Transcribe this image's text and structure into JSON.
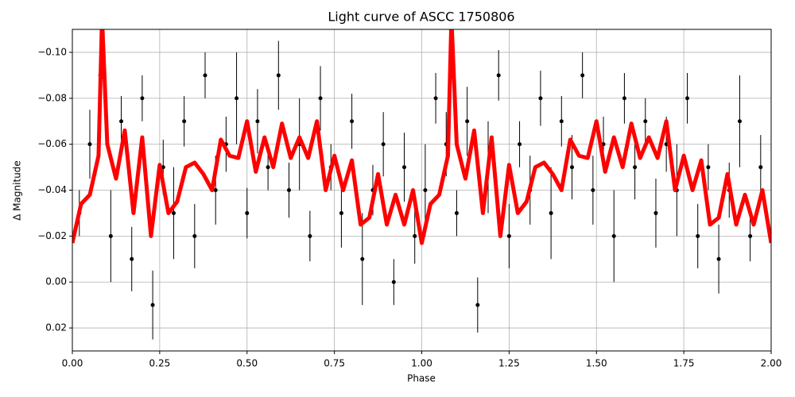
{
  "chart_data": {
    "type": "errorbar",
    "title": "Light curve of ASCC 1750806",
    "x_label": "Phase",
    "y_label": "Δ Magnitude",
    "xlim": [
      0,
      2
    ],
    "ylim": [
      0.03,
      -0.11
    ],
    "grid": true,
    "xticks": [
      {
        "value": 0,
        "label": "0.00"
      },
      {
        "value": 0.25,
        "label": "0.25"
      },
      {
        "value": 0.5,
        "label": "0.50"
      },
      {
        "value": 0.75,
        "label": "0.75"
      },
      {
        "value": 1,
        "label": "1.00"
      },
      {
        "value": 1.25,
        "label": "1.25"
      },
      {
        "value": 1.5,
        "label": "1.50"
      },
      {
        "value": 1.75,
        "label": "1.75"
      },
      {
        "value": 2,
        "label": "2.00"
      }
    ],
    "yticks": [
      {
        "value": -0.1,
        "label": "−0.10"
      },
      {
        "value": -0.08,
        "label": "−0.08"
      },
      {
        "value": -0.06,
        "label": "−0.06"
      },
      {
        "value": -0.04,
        "label": "−0.04"
      },
      {
        "value": -0.02,
        "label": "−0.02"
      },
      {
        "value": 0,
        "label": "0.00"
      },
      {
        "value": 0.02,
        "label": "0.02"
      }
    ],
    "series": [
      {
        "type": "errorbar",
        "color": "#000000",
        "x": [
          0.02,
          0.05,
          0.08,
          0.11,
          0.14,
          0.17,
          0.2,
          0.23,
          0.26,
          0.29,
          0.32,
          0.35,
          0.38,
          0.41,
          0.44,
          0.47,
          0.5,
          0.53,
          0.56,
          0.59,
          0.62,
          0.65,
          0.68,
          0.71,
          0.74,
          0.77,
          0.8,
          0.83,
          0.86,
          0.89,
          0.92,
          0.95,
          0.98,
          1.01,
          1.04,
          1.07,
          1.1,
          1.13,
          1.16,
          1.19,
          1.22,
          1.25,
          1.28,
          1.31,
          1.34,
          1.37,
          1.4,
          1.43,
          1.46,
          1.49,
          1.52,
          1.55,
          1.58,
          1.61,
          1.64,
          1.67,
          1.7,
          1.73,
          1.76,
          1.79,
          1.82,
          1.85,
          1.88,
          1.91,
          1.94,
          1.97
        ],
        "values": [
          -0.03,
          -0.06,
          -0.09,
          -0.02,
          -0.07,
          -0.01,
          -0.08,
          0.01,
          -0.05,
          -0.03,
          -0.07,
          -0.02,
          -0.09,
          -0.04,
          -0.06,
          -0.08,
          -0.03,
          -0.07,
          -0.05,
          -0.09,
          -0.04,
          -0.06,
          -0.02,
          -0.08,
          -0.05,
          -0.03,
          -0.07,
          -0.01,
          -0.04,
          -0.06,
          0.0,
          -0.05,
          -0.02,
          -0.04,
          -0.08,
          -0.06,
          -0.03,
          -0.07,
          0.01,
          -0.05,
          -0.09,
          -0.02,
          -0.06,
          -0.04,
          -0.08,
          -0.03,
          -0.07,
          -0.05,
          -0.09,
          -0.04,
          -0.06,
          -0.02,
          -0.08,
          -0.05,
          -0.07,
          -0.03,
          -0.06,
          -0.04,
          -0.08,
          -0.02,
          -0.05,
          -0.01,
          -0.04,
          -0.07,
          -0.02,
          -0.05
        ],
        "errors": [
          0.01,
          0.015,
          0.012,
          0.02,
          0.011,
          0.014,
          0.01,
          0.015,
          0.012,
          0.02,
          0.011,
          0.014,
          0.01,
          0.015,
          0.012,
          0.02,
          0.011,
          0.014,
          0.01,
          0.015,
          0.012,
          0.02,
          0.011,
          0.014,
          0.01,
          0.015,
          0.012,
          0.02,
          0.011,
          0.014,
          0.01,
          0.015,
          0.012,
          0.02,
          0.011,
          0.014,
          0.01,
          0.015,
          0.012,
          0.02,
          0.011,
          0.014,
          0.01,
          0.015,
          0.012,
          0.02,
          0.011,
          0.014,
          0.01,
          0.015,
          0.012,
          0.02,
          0.011,
          0.014,
          0.01,
          0.015,
          0.012,
          0.02,
          0.011,
          0.014,
          0.01,
          0.015,
          0.012,
          0.02,
          0.011,
          0.014
        ]
      },
      {
        "type": "line",
        "color": "#ff0000",
        "x": [
          0,
          0.025,
          0.05,
          0.075,
          0.085,
          0.1,
          0.125,
          0.15,
          0.175,
          0.2,
          0.225,
          0.25,
          0.275,
          0.3,
          0.325,
          0.35,
          0.375,
          0.4,
          0.425,
          0.45,
          0.475,
          0.5,
          0.525,
          0.55,
          0.575,
          0.6,
          0.625,
          0.65,
          0.675,
          0.7,
          0.725,
          0.75,
          0.775,
          0.8,
          0.825,
          0.85,
          0.875,
          0.9,
          0.925,
          0.95,
          0.975,
          1,
          1.025,
          1.05,
          1.075,
          1.085,
          1.1,
          1.125,
          1.15,
          1.175,
          1.2,
          1.225,
          1.25,
          1.275,
          1.3,
          1.325,
          1.35,
          1.375,
          1.4,
          1.425,
          1.45,
          1.475,
          1.5,
          1.525,
          1.55,
          1.575,
          1.6,
          1.625,
          1.65,
          1.675,
          1.7,
          1.725,
          1.75,
          1.775,
          1.8,
          1.825,
          1.85,
          1.875,
          1.9,
          1.925,
          1.95,
          1.975,
          2
        ],
        "values": [
          -0.017,
          -0.034,
          -0.038,
          -0.055,
          -0.115,
          -0.06,
          -0.045,
          -0.066,
          -0.03,
          -0.063,
          -0.02,
          -0.051,
          -0.03,
          -0.035,
          -0.05,
          -0.052,
          -0.047,
          -0.04,
          -0.062,
          -0.055,
          -0.054,
          -0.07,
          -0.048,
          -0.063,
          -0.05,
          -0.069,
          -0.054,
          -0.063,
          -0.054,
          -0.07,
          -0.04,
          -0.055,
          -0.04,
          -0.053,
          -0.025,
          -0.028,
          -0.047,
          -0.025,
          -0.038,
          -0.025,
          -0.04,
          -0.017,
          -0.034,
          -0.038,
          -0.055,
          -0.115,
          -0.06,
          -0.045,
          -0.066,
          -0.03,
          -0.063,
          -0.02,
          -0.051,
          -0.03,
          -0.035,
          -0.05,
          -0.052,
          -0.047,
          -0.04,
          -0.062,
          -0.055,
          -0.054,
          -0.07,
          -0.048,
          -0.063,
          -0.05,
          -0.069,
          -0.054,
          -0.063,
          -0.054,
          -0.07,
          -0.04,
          -0.055,
          -0.04,
          -0.053,
          -0.025,
          -0.028,
          -0.047,
          -0.025,
          -0.038,
          -0.025,
          -0.04,
          -0.017
        ]
      }
    ]
  }
}
